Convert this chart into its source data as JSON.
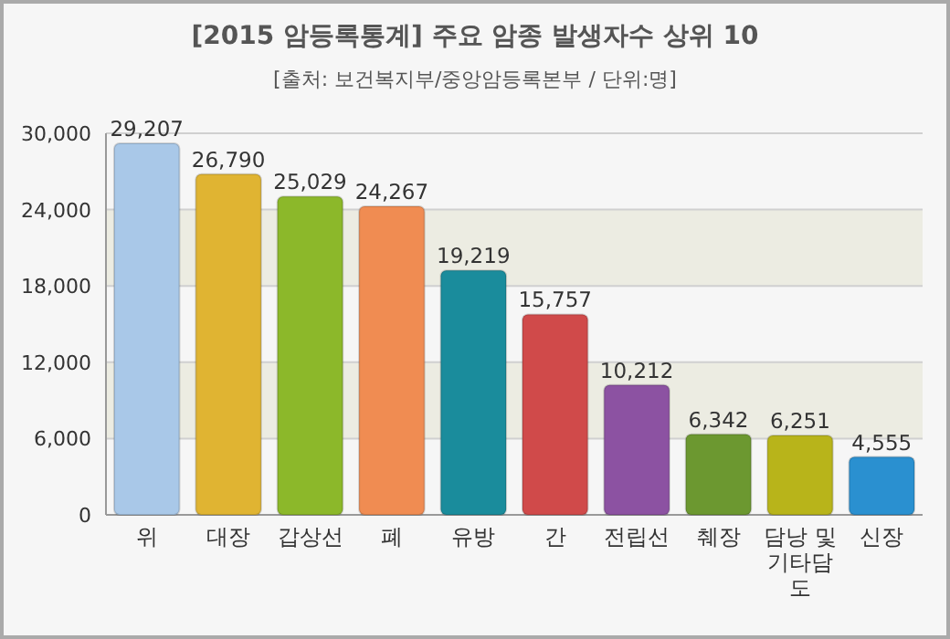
{
  "chart_data": {
    "type": "bar",
    "title": "[2015 암등록통계] 주요 암종 발생자수 상위 10",
    "subtitle": "[출처: 보건복지부/중앙암등록본부 / 단위:명]",
    "categories": [
      "위",
      "대장",
      "갑상선",
      "폐",
      "유방",
      "간",
      "전립선",
      "췌장",
      "담낭 및 기타담도",
      "신장"
    ],
    "values": [
      29207,
      26790,
      25029,
      24267,
      19219,
      15757,
      10212,
      6342,
      6251,
      4555
    ],
    "colors": [
      "#a9c8e8",
      "#e0b432",
      "#8cb82a",
      "#f08c52",
      "#1a8c9c",
      "#d04a4a",
      "#8c52a2",
      "#6c9830",
      "#b8b41a",
      "#2a90d0"
    ],
    "value_labels": [
      "29,207",
      "26,790",
      "25,029",
      "24,267",
      "19,219",
      "15,757",
      "10,212",
      "6,342",
      "6,251",
      "4,555"
    ],
    "ylim": [
      0,
      30000
    ],
    "yticks": [
      0,
      {
        "value": 6000,
        "label": "6,000"
      },
      {
        "value": 12000,
        "label": "12,000"
      },
      {
        "value": 18000,
        "label": "18,000"
      },
      {
        "value": 24000,
        "label": "24,000"
      },
      {
        "value": 30000,
        "label": "30,000"
      }
    ],
    "grid": "y"
  }
}
